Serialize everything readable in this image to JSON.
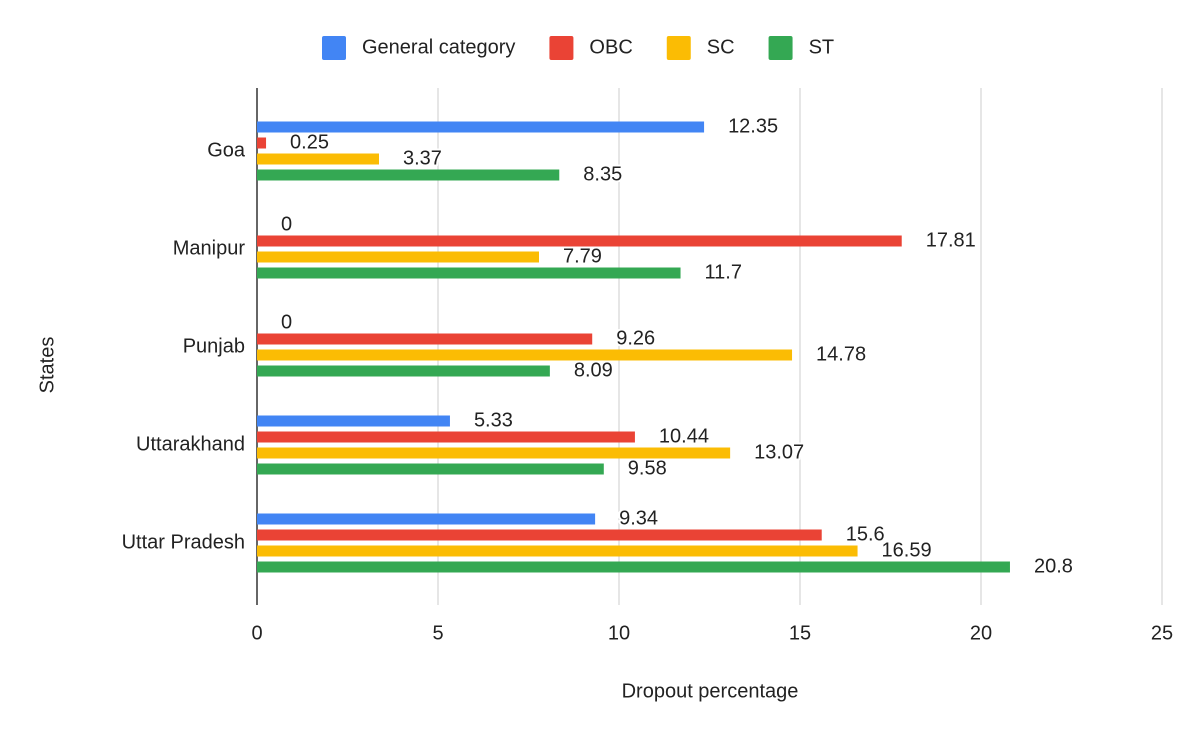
{
  "chart_data": {
    "type": "bar",
    "orientation": "horizontal",
    "x_label": "Dropout percentage",
    "y_label": "States",
    "categories": [
      "Goa",
      "Manipur",
      "Punjab",
      "Uttarakhand",
      "Uttar Pradesh"
    ],
    "series": [
      {
        "name": "General category",
        "color": "#4285f4",
        "values": [
          12.35,
          0,
          0,
          5.33,
          9.34
        ]
      },
      {
        "name": "OBC",
        "color": "#ea4335",
        "values": [
          0.25,
          17.81,
          9.26,
          10.44,
          15.6
        ]
      },
      {
        "name": "SC",
        "color": "#fbbc04",
        "values": [
          3.37,
          7.79,
          14.78,
          13.07,
          16.59
        ]
      },
      {
        "name": "ST",
        "color": "#34a853",
        "values": [
          8.35,
          11.7,
          8.09,
          9.58,
          20.8
        ]
      }
    ],
    "xlim": [
      0,
      25
    ],
    "xticks": [
      0,
      5,
      10,
      15,
      20,
      25
    ],
    "grid": true,
    "legend": "top"
  }
}
